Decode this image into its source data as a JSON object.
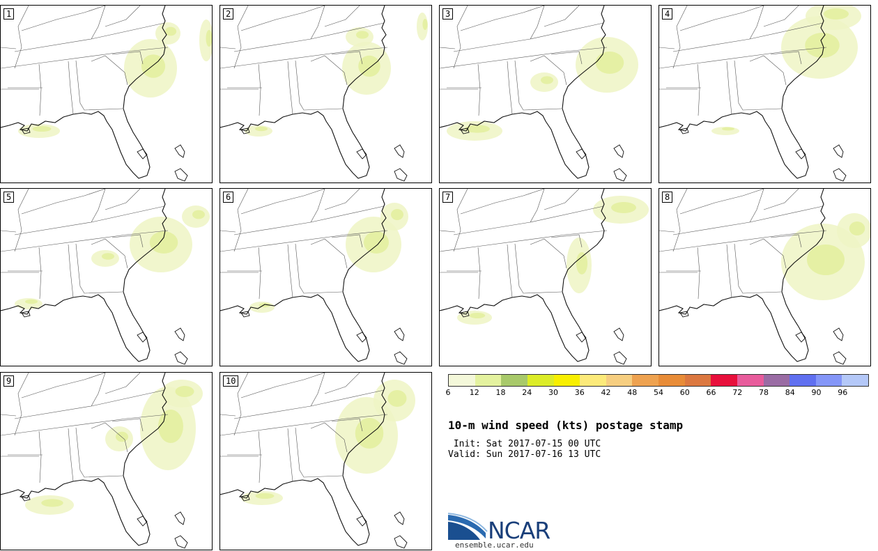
{
  "panels": [
    {
      "label": "1"
    },
    {
      "label": "2"
    },
    {
      "label": "3"
    },
    {
      "label": "4"
    },
    {
      "label": "5"
    },
    {
      "label": "6"
    },
    {
      "label": "7"
    },
    {
      "label": "8"
    },
    {
      "label": "9"
    },
    {
      "label": "10"
    }
  ],
  "colorbar": {
    "colors": [
      "#f4f8da",
      "#e4f29f",
      "#a8c96a",
      "#dcec28",
      "#f8ef00",
      "#fcea7a",
      "#f6ce80",
      "#eea250",
      "#e88c38",
      "#dc7840",
      "#e8103c",
      "#e85c9c",
      "#9a6ca4",
      "#6070f0",
      "#8496f8",
      "#b4c8f8"
    ],
    "ticks": [
      "6",
      "12",
      "18",
      "24",
      "30",
      "36",
      "42",
      "48",
      "54",
      "60",
      "66",
      "72",
      "78",
      "84",
      "90",
      "96"
    ]
  },
  "title": "10-m wind speed (kts) postage stamp",
  "init": " Init: Sat 2017-07-15 00 UTC",
  "valid": "Valid: Sun 2017-07-16 13 UTC",
  "logo": {
    "name": "NCAR",
    "url": "ensemble.ucar.edu"
  }
}
